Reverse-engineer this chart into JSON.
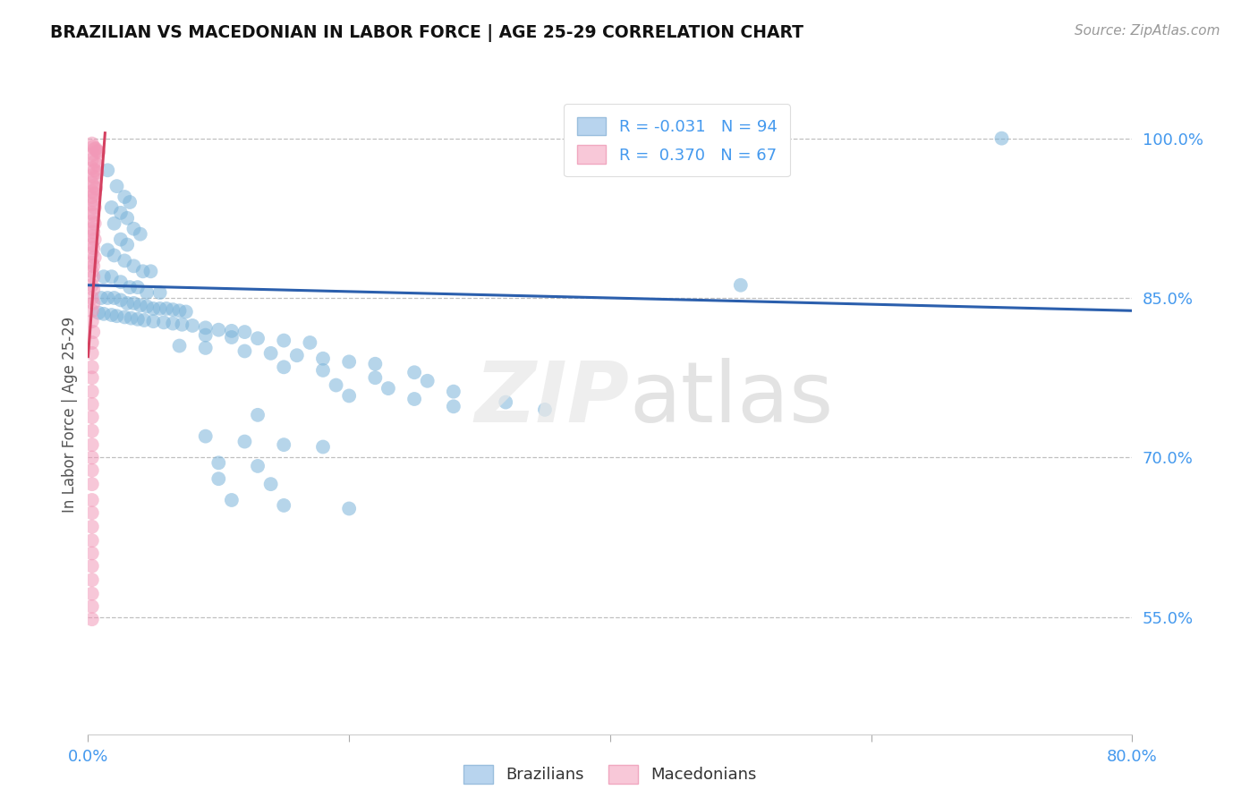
{
  "title": "BRAZILIAN VS MACEDONIAN IN LABOR FORCE | AGE 25-29 CORRELATION CHART",
  "source": "Source: ZipAtlas.com",
  "ylabel": "In Labor Force | Age 25-29",
  "watermark": "ZIPatlas",
  "blue_color": "#7ab3d9",
  "pink_color": "#f299b8",
  "trendline_blue_color": "#2b5fad",
  "trendline_pink_color": "#d44060",
  "xlim": [
    0.0,
    0.8
  ],
  "ylim": [
    0.44,
    1.04
  ],
  "grid_yticks": [
    0.55,
    0.7,
    0.85,
    1.0
  ],
  "blue_trendline": [
    [
      0.0,
      0.862
    ],
    [
      0.8,
      0.838
    ]
  ],
  "pink_trendline": [
    [
      0.0,
      0.795
    ],
    [
      0.013,
      1.005
    ]
  ],
  "brazilian_scatter": [
    [
      0.015,
      0.97
    ],
    [
      0.022,
      0.955
    ],
    [
      0.028,
      0.945
    ],
    [
      0.032,
      0.94
    ],
    [
      0.018,
      0.935
    ],
    [
      0.025,
      0.93
    ],
    [
      0.03,
      0.925
    ],
    [
      0.02,
      0.92
    ],
    [
      0.035,
      0.915
    ],
    [
      0.04,
      0.91
    ],
    [
      0.025,
      0.905
    ],
    [
      0.03,
      0.9
    ],
    [
      0.015,
      0.895
    ],
    [
      0.02,
      0.89
    ],
    [
      0.028,
      0.885
    ],
    [
      0.035,
      0.88
    ],
    [
      0.042,
      0.875
    ],
    [
      0.048,
      0.875
    ],
    [
      0.012,
      0.87
    ],
    [
      0.018,
      0.87
    ],
    [
      0.025,
      0.865
    ],
    [
      0.032,
      0.86
    ],
    [
      0.038,
      0.86
    ],
    [
      0.045,
      0.855
    ],
    [
      0.055,
      0.855
    ],
    [
      0.01,
      0.85
    ],
    [
      0.015,
      0.85
    ],
    [
      0.02,
      0.85
    ],
    [
      0.025,
      0.848
    ],
    [
      0.03,
      0.845
    ],
    [
      0.035,
      0.845
    ],
    [
      0.04,
      0.843
    ],
    [
      0.045,
      0.842
    ],
    [
      0.05,
      0.84
    ],
    [
      0.055,
      0.84
    ],
    [
      0.06,
      0.84
    ],
    [
      0.065,
      0.839
    ],
    [
      0.07,
      0.838
    ],
    [
      0.075,
      0.837
    ],
    [
      0.008,
      0.836
    ],
    [
      0.012,
      0.835
    ],
    [
      0.018,
      0.834
    ],
    [
      0.022,
      0.833
    ],
    [
      0.028,
      0.832
    ],
    [
      0.033,
      0.831
    ],
    [
      0.038,
      0.83
    ],
    [
      0.043,
      0.829
    ],
    [
      0.05,
      0.828
    ],
    [
      0.058,
      0.827
    ],
    [
      0.065,
      0.826
    ],
    [
      0.072,
      0.825
    ],
    [
      0.08,
      0.824
    ],
    [
      0.09,
      0.822
    ],
    [
      0.1,
      0.82
    ],
    [
      0.11,
      0.819
    ],
    [
      0.12,
      0.818
    ],
    [
      0.09,
      0.815
    ],
    [
      0.11,
      0.813
    ],
    [
      0.13,
      0.812
    ],
    [
      0.15,
      0.81
    ],
    [
      0.17,
      0.808
    ],
    [
      0.07,
      0.805
    ],
    [
      0.09,
      0.803
    ],
    [
      0.12,
      0.8
    ],
    [
      0.14,
      0.798
    ],
    [
      0.16,
      0.796
    ],
    [
      0.18,
      0.793
    ],
    [
      0.2,
      0.79
    ],
    [
      0.22,
      0.788
    ],
    [
      0.15,
      0.785
    ],
    [
      0.18,
      0.782
    ],
    [
      0.25,
      0.78
    ],
    [
      0.22,
      0.775
    ],
    [
      0.26,
      0.772
    ],
    [
      0.19,
      0.768
    ],
    [
      0.23,
      0.765
    ],
    [
      0.28,
      0.762
    ],
    [
      0.2,
      0.758
    ],
    [
      0.25,
      0.755
    ],
    [
      0.32,
      0.752
    ],
    [
      0.28,
      0.748
    ],
    [
      0.35,
      0.745
    ],
    [
      0.5,
      0.862
    ],
    [
      0.13,
      0.74
    ],
    [
      0.09,
      0.72
    ],
    [
      0.12,
      0.715
    ],
    [
      0.15,
      0.712
    ],
    [
      0.18,
      0.71
    ],
    [
      0.1,
      0.695
    ],
    [
      0.13,
      0.692
    ],
    [
      0.1,
      0.68
    ],
    [
      0.14,
      0.675
    ],
    [
      0.11,
      0.66
    ],
    [
      0.15,
      0.655
    ],
    [
      0.2,
      0.652
    ],
    [
      0.7,
      1.0
    ]
  ],
  "macedonian_scatter": [
    [
      0.003,
      0.995
    ],
    [
      0.004,
      0.992
    ],
    [
      0.005,
      0.99
    ],
    [
      0.006,
      0.99
    ],
    [
      0.007,
      0.988
    ],
    [
      0.008,
      0.987
    ],
    [
      0.004,
      0.985
    ],
    [
      0.003,
      0.98
    ],
    [
      0.005,
      0.978
    ],
    [
      0.007,
      0.975
    ],
    [
      0.003,
      0.972
    ],
    [
      0.005,
      0.97
    ],
    [
      0.007,
      0.968
    ],
    [
      0.003,
      0.965
    ],
    [
      0.005,
      0.963
    ],
    [
      0.003,
      0.958
    ],
    [
      0.004,
      0.955
    ],
    [
      0.006,
      0.953
    ],
    [
      0.003,
      0.95
    ],
    [
      0.005,
      0.948
    ],
    [
      0.003,
      0.945
    ],
    [
      0.004,
      0.942
    ],
    [
      0.003,
      0.938
    ],
    [
      0.005,
      0.935
    ],
    [
      0.003,
      0.93
    ],
    [
      0.004,
      0.928
    ],
    [
      0.003,
      0.922
    ],
    [
      0.005,
      0.92
    ],
    [
      0.003,
      0.915
    ],
    [
      0.004,
      0.912
    ],
    [
      0.003,
      0.908
    ],
    [
      0.005,
      0.905
    ],
    [
      0.003,
      0.9
    ],
    [
      0.004,
      0.897
    ],
    [
      0.003,
      0.892
    ],
    [
      0.005,
      0.888
    ],
    [
      0.003,
      0.883
    ],
    [
      0.004,
      0.88
    ],
    [
      0.003,
      0.875
    ],
    [
      0.004,
      0.87
    ],
    [
      0.003,
      0.862
    ],
    [
      0.004,
      0.858
    ],
    [
      0.003,
      0.85
    ],
    [
      0.004,
      0.845
    ],
    [
      0.003,
      0.838
    ],
    [
      0.003,
      0.828
    ],
    [
      0.004,
      0.818
    ],
    [
      0.003,
      0.808
    ],
    [
      0.003,
      0.798
    ],
    [
      0.003,
      0.785
    ],
    [
      0.003,
      0.775
    ],
    [
      0.003,
      0.762
    ],
    [
      0.003,
      0.75
    ],
    [
      0.003,
      0.738
    ],
    [
      0.003,
      0.725
    ],
    [
      0.003,
      0.712
    ],
    [
      0.003,
      0.7
    ],
    [
      0.003,
      0.688
    ],
    [
      0.003,
      0.675
    ],
    [
      0.003,
      0.66
    ],
    [
      0.003,
      0.648
    ],
    [
      0.003,
      0.635
    ],
    [
      0.003,
      0.622
    ],
    [
      0.003,
      0.61
    ],
    [
      0.003,
      0.598
    ],
    [
      0.003,
      0.585
    ],
    [
      0.003,
      0.572
    ],
    [
      0.003,
      0.56
    ],
    [
      0.003,
      0.548
    ]
  ]
}
